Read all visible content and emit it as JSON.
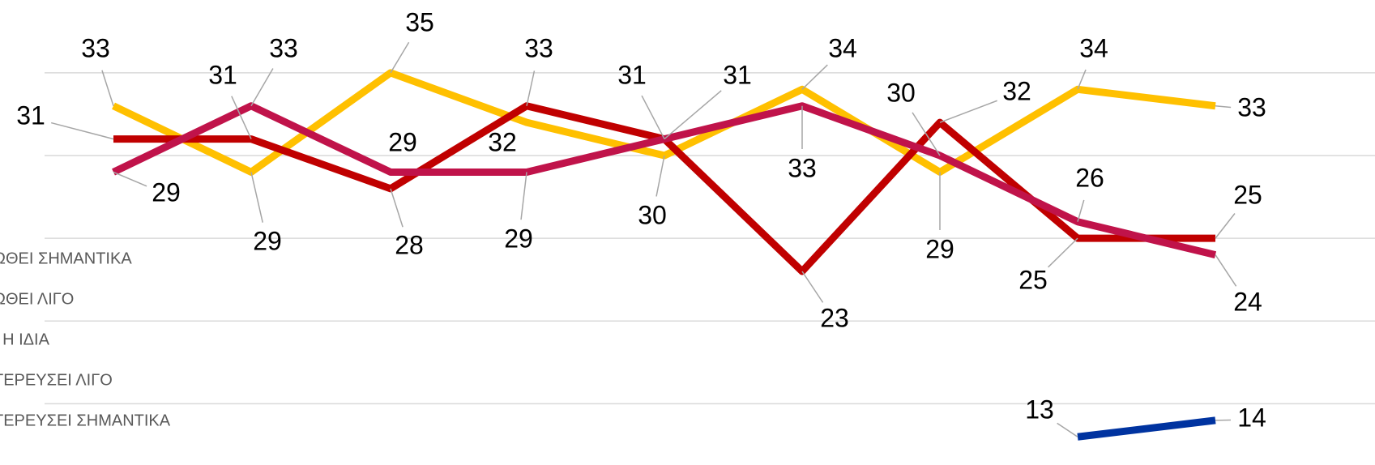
{
  "chart_data": {
    "type": "line",
    "categories": [
      null,
      null,
      null,
      null,
      null,
      null,
      null,
      null,
      null
    ],
    "series": [
      {
        "name": "ΩΘΕΙ ΣΗΜΑΝΤΙΚΑ",
        "color": "#ffc000",
        "values": [
          33,
          29,
          35,
          32,
          30,
          34,
          29,
          34,
          33
        ]
      },
      {
        "name": "ΩΘΕΙ ΛΙΓΟ",
        "color": "#c00000",
        "values": [
          31,
          31,
          28,
          33,
          31,
          23,
          32,
          25,
          25
        ]
      },
      {
        "name": "Ι Η ΙΔΙΑ",
        "color": "#c0134a",
        "values": [
          29,
          33,
          29,
          29,
          31,
          33,
          30,
          26,
          24
        ]
      },
      {
        "name": "ΤΕΡΕΥΣΕΙ ΛΙΓΟ",
        "values": [
          null,
          null,
          null,
          null,
          null,
          null,
          null,
          null,
          null
        ]
      },
      {
        "name": "ΤΕΡΕΥΣΕΙ ΣΗΜΑΝΤΙΚΑ",
        "color": "#0033a0",
        "values": [
          null,
          null,
          null,
          null,
          null,
          null,
          null,
          13,
          14
        ]
      }
    ],
    "ylim": [
      11.3,
      39.4
    ],
    "yticks": [
      15,
      20,
      25,
      30,
      35
    ],
    "grid": true
  }
}
